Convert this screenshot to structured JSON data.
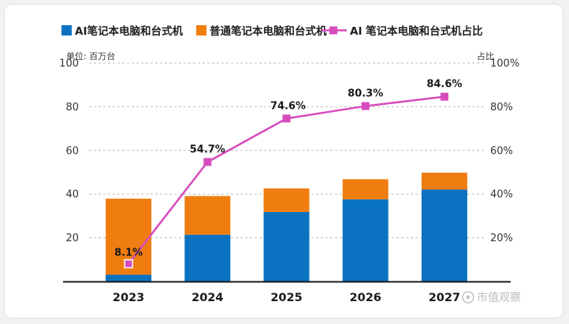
{
  "chart_data": {
    "type": "bar",
    "stacked": true,
    "categories": [
      "2023",
      "2024",
      "2025",
      "2026",
      "2027"
    ],
    "series": [
      {
        "name": "AI笔记本电脑和台式机",
        "kind": "bar",
        "axis": "left",
        "color": "#0a72c0",
        "values": [
          3.1,
          21.4,
          31.8,
          37.6,
          42.1
        ]
      },
      {
        "name": "普通笔记本电脑和台式机",
        "kind": "bar",
        "axis": "left",
        "color": "#f07d10",
        "values": [
          34.8,
          17.7,
          10.8,
          9.2,
          7.7
        ]
      },
      {
        "name": "AI 笔记本电脑和台式机占比",
        "kind": "line",
        "axis": "right",
        "color": "#d64bbd",
        "values": [
          8.1,
          54.7,
          74.6,
          80.3,
          84.6
        ],
        "labels": [
          "8.1%",
          "54.7%",
          "74.6%",
          "80.3%",
          "84.6%"
        ]
      }
    ],
    "left_axis": {
      "label": "单位: 百万台",
      "range": [
        0,
        100
      ],
      "ticks": [
        20,
        40,
        60,
        80,
        100
      ]
    },
    "right_axis": {
      "label": "占比",
      "range": [
        0,
        100
      ],
      "ticks": [
        "20%",
        "40%",
        "60%",
        "80%",
        "100%"
      ]
    },
    "grid": "horizontal dashed",
    "legend_position": "top"
  },
  "watermark": "市值观察"
}
